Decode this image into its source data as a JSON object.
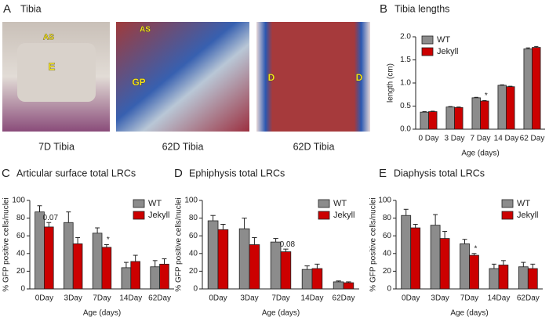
{
  "panel_a": {
    "panel": "A",
    "title": "Tibia",
    "images": [
      {
        "caption": "7D Tibia",
        "labels": [
          "AS",
          "E"
        ]
      },
      {
        "caption": "62D Tibia",
        "labels": [
          "AS",
          "GP"
        ]
      },
      {
        "caption": "62D Tibia",
        "labels": [
          "D",
          "D"
        ]
      }
    ]
  },
  "chart_data": [
    {
      "type": "bar",
      "panel": "B",
      "title": "Tibia lengths",
      "x_label": "Age (days)",
      "y_label": "length (cm)",
      "categories": [
        "0 Day",
        "3 Day",
        "7 Day",
        "14 Day",
        "62 Day"
      ],
      "series": [
        {
          "name": "WT",
          "color": "#8c8c8c",
          "values": [
            0.37,
            0.48,
            0.68,
            0.95,
            1.74
          ],
          "errors": [
            0.01,
            0.01,
            0.01,
            0.01,
            0.02
          ]
        },
        {
          "name": "Jekyll",
          "color": "#cc0000",
          "values": [
            0.38,
            0.47,
            0.61,
            0.92,
            1.77
          ],
          "errors": [
            0.01,
            0.01,
            0.01,
            0.01,
            0.02
          ],
          "annotations": [
            null,
            null,
            "*",
            null,
            null
          ]
        }
      ],
      "ylim": [
        0,
        2.0
      ],
      "yticks": [
        {
          "value": 0,
          "label": "0.0"
        },
        0.5,
        {
          "value": 1.0,
          "label": "1.0"
        },
        1.5,
        {
          "value": 2.0,
          "label": "2.0"
        }
      ],
      "legend": "upper left"
    },
    {
      "type": "bar",
      "panel": "C",
      "title": "Articular surface total LRCs",
      "x_label": "Age (days)",
      "y_label": "% GFP positive cells/nuclei",
      "categories": [
        "0Day",
        "3Day",
        "7Day",
        "14Day",
        "62Day"
      ],
      "series": [
        {
          "name": "WT",
          "color": "#8c8c8c",
          "values": [
            87,
            75,
            63,
            24,
            25
          ],
          "errors": [
            7,
            12,
            6,
            6,
            7
          ]
        },
        {
          "name": "Jekyll",
          "color": "#cc0000",
          "values": [
            70,
            51,
            47,
            31,
            28
          ],
          "errors": [
            5,
            7,
            3,
            7,
            6
          ],
          "annotations": [
            "0.07",
            null,
            "*",
            null,
            null
          ]
        }
      ],
      "ylim": [
        0,
        100
      ],
      "yticks": [
        0,
        20,
        40,
        60,
        80,
        100
      ],
      "legend": "upper right"
    },
    {
      "type": "bar",
      "panel": "D",
      "title": "Ephiphysis total LRCs",
      "x_label": "Age (days)",
      "y_label": "% GFP positive cells/nuclei",
      "categories": [
        "0Day",
        "3Day",
        "7Day",
        "14Day",
        "62Day"
      ],
      "series": [
        {
          "name": "WT",
          "color": "#8c8c8c",
          "values": [
            77,
            68,
            53,
            22,
            8
          ],
          "errors": [
            6,
            12,
            4,
            4,
            1
          ]
        },
        {
          "name": "Jekyll",
          "color": "#cc0000",
          "values": [
            67,
            50,
            42,
            23,
            7
          ],
          "errors": [
            6,
            8,
            3,
            5,
            1
          ],
          "annotations": [
            null,
            null,
            "0.08",
            null,
            null
          ]
        }
      ],
      "ylim": [
        0,
        100
      ],
      "yticks": [
        0,
        20,
        40,
        60,
        80,
        100
      ],
      "legend": "upper right"
    },
    {
      "type": "bar",
      "panel": "E",
      "title": "Diaphysis total LRCs",
      "x_label": "Age (days)",
      "y_label": "% GFP positive cells/nuclei",
      "categories": [
        "0Day",
        "3Day",
        "7Day",
        "14Day",
        "62Day"
      ],
      "series": [
        {
          "name": "WT",
          "color": "#8c8c8c",
          "values": [
            83,
            72,
            51,
            23,
            25
          ],
          "errors": [
            7,
            12,
            5,
            5,
            5
          ]
        },
        {
          "name": "Jekyll",
          "color": "#cc0000",
          "values": [
            69,
            57,
            38,
            27,
            23
          ],
          "errors": [
            4,
            8,
            2,
            5,
            5
          ],
          "annotations": [
            null,
            null,
            "*",
            null,
            null
          ]
        }
      ],
      "ylim": [
        0,
        100
      ],
      "yticks": [
        0,
        20,
        40,
        60,
        80,
        100
      ],
      "legend": "upper right"
    }
  ]
}
